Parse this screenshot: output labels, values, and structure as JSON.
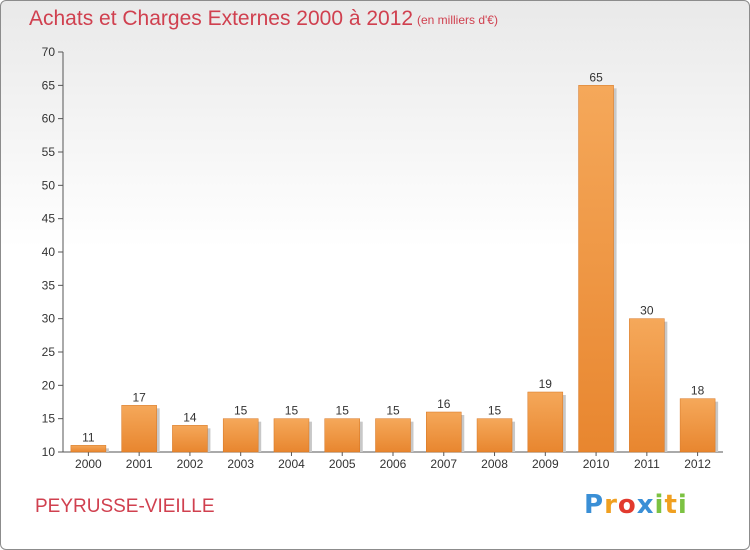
{
  "header": {
    "title": "Achats et Charges Externes 2000 à 2012",
    "unit": "(en milliers d'€)"
  },
  "footer": {
    "commune": "PEYRUSSE-VIEILLE",
    "logo": {
      "letters": [
        "P",
        "r",
        "o",
        "x",
        "i",
        "t",
        "i"
      ],
      "colors": [
        "#3a8fd6",
        "#f0a020",
        "#e23a2e",
        "#3a8fd6",
        "#7cc242",
        "#f0a020",
        "#7cc242"
      ]
    }
  },
  "chart_data": {
    "type": "bar",
    "title": "Achats et Charges Externes 2000 à 2012",
    "subtitle": "(en milliers d'€)",
    "categories": [
      "2000",
      "2001",
      "2002",
      "2003",
      "2004",
      "2005",
      "2006",
      "2007",
      "2008",
      "2009",
      "2010",
      "2011",
      "2012"
    ],
    "values": [
      11,
      17,
      14,
      15,
      15,
      15,
      15,
      16,
      15,
      19,
      65,
      30,
      18
    ],
    "ylim": [
      10,
      70
    ],
    "yticks": [
      10,
      15,
      20,
      25,
      30,
      35,
      40,
      45,
      50,
      55,
      60,
      65,
      70
    ],
    "grid": false,
    "bar_color": "#e8862f",
    "bar_color_light": "#f5a85a"
  }
}
